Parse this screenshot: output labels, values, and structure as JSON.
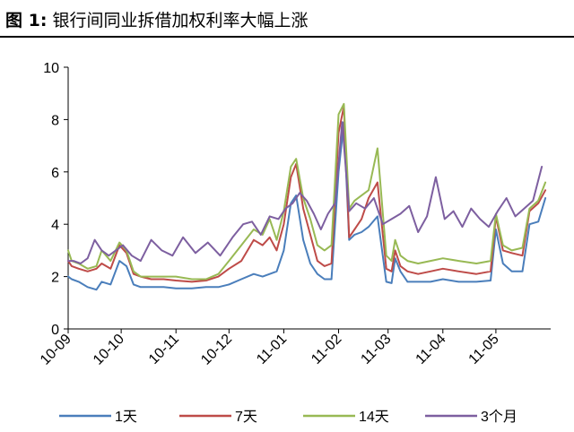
{
  "figure_label": "图 1:",
  "chart_data": {
    "type": "line",
    "title": "银行间同业拆借加权利率大幅上涨",
    "xlabel": "",
    "ylabel": "",
    "ylim": [
      0,
      10
    ],
    "yticks": [
      "0",
      "2",
      "4",
      "6",
      "8",
      "10"
    ],
    "xlim": [
      "2010-09-01",
      "2011-06-01"
    ],
    "xticks": [
      {
        "date": "2010-09-01",
        "label": "10-09"
      },
      {
        "date": "2010-10-01",
        "label": "10-10"
      },
      {
        "date": "2010-11-01",
        "label": "10-11"
      },
      {
        "date": "2010-12-01",
        "label": "10-12"
      },
      {
        "date": "2011-01-01",
        "label": "11-01"
      },
      {
        "date": "2011-02-01",
        "label": "11-02"
      },
      {
        "date": "2011-03-01",
        "label": "11-03"
      },
      {
        "date": "2011-04-01",
        "label": "11-04"
      },
      {
        "date": "2011-05-01",
        "label": "11-05"
      }
    ],
    "grid": false,
    "legend_position": "bottom",
    "series": [
      {
        "name": "1天",
        "color": "#4a7ebb",
        "x": [
          "2010-09-01",
          "2010-09-03",
          "2010-09-07",
          "2010-09-12",
          "2010-09-17",
          "2010-09-20",
          "2010-09-25",
          "2010-09-30",
          "2010-10-04",
          "2010-10-08",
          "2010-10-12",
          "2010-10-18",
          "2010-10-25",
          "2010-11-01",
          "2010-11-10",
          "2010-11-18",
          "2010-11-25",
          "2010-12-01",
          "2010-12-08",
          "2010-12-15",
          "2010-12-20",
          "2010-12-24",
          "2010-12-28",
          "2011-01-01",
          "2011-01-05",
          "2011-01-08",
          "2011-01-12",
          "2011-01-16",
          "2011-01-20",
          "2011-01-24",
          "2011-01-28",
          "2011-02-01",
          "2011-02-04",
          "2011-02-07",
          "2011-02-10",
          "2011-02-14",
          "2011-02-18",
          "2011-02-23",
          "2011-02-28",
          "2011-03-03",
          "2011-03-05",
          "2011-03-08",
          "2011-03-12",
          "2011-03-18",
          "2011-03-25",
          "2011-04-01",
          "2011-04-10",
          "2011-04-20",
          "2011-04-28",
          "2011-05-01",
          "2011-05-05",
          "2011-05-10",
          "2011-05-16",
          "2011-05-20",
          "2011-05-25",
          "2011-05-29"
        ],
        "y": [
          2.0,
          1.9,
          1.8,
          1.6,
          1.5,
          1.8,
          1.7,
          2.6,
          2.4,
          1.7,
          1.6,
          1.6,
          1.6,
          1.55,
          1.55,
          1.6,
          1.6,
          1.7,
          1.9,
          2.1,
          2.0,
          2.1,
          2.2,
          3.0,
          4.8,
          5.1,
          3.4,
          2.5,
          2.1,
          1.9,
          1.9,
          6.0,
          7.9,
          3.4,
          3.6,
          3.7,
          3.9,
          4.3,
          1.8,
          1.75,
          2.7,
          2.2,
          1.8,
          1.8,
          1.8,
          1.9,
          1.8,
          1.8,
          1.85,
          3.8,
          2.5,
          2.2,
          2.2,
          4.0,
          4.1,
          5.0
        ]
      },
      {
        "name": "7天",
        "color": "#be4b48",
        "x": [
          "2010-09-01",
          "2010-09-03",
          "2010-09-07",
          "2010-09-12",
          "2010-09-17",
          "2010-09-20",
          "2010-09-25",
          "2010-09-30",
          "2010-10-04",
          "2010-10-08",
          "2010-10-12",
          "2010-10-18",
          "2010-10-25",
          "2010-11-01",
          "2010-11-10",
          "2010-11-18",
          "2010-11-25",
          "2010-12-01",
          "2010-12-08",
          "2010-12-15",
          "2010-12-20",
          "2010-12-24",
          "2010-12-28",
          "2011-01-01",
          "2011-01-05",
          "2011-01-08",
          "2011-01-12",
          "2011-01-16",
          "2011-01-20",
          "2011-01-24",
          "2011-01-28",
          "2011-02-01",
          "2011-02-04",
          "2011-02-07",
          "2011-02-10",
          "2011-02-14",
          "2011-02-18",
          "2011-02-23",
          "2011-02-28",
          "2011-03-03",
          "2011-03-05",
          "2011-03-08",
          "2011-03-12",
          "2011-03-18",
          "2011-03-25",
          "2011-04-01",
          "2011-04-10",
          "2011-04-20",
          "2011-04-28",
          "2011-05-01",
          "2011-05-05",
          "2011-05-10",
          "2011-05-16",
          "2011-05-20",
          "2011-05-25",
          "2011-05-29"
        ],
        "y": [
          2.6,
          2.4,
          2.3,
          2.2,
          2.3,
          2.5,
          2.3,
          3.2,
          2.9,
          2.1,
          2.0,
          1.9,
          1.9,
          1.85,
          1.8,
          1.85,
          2.0,
          2.3,
          2.6,
          3.4,
          3.2,
          3.5,
          3.0,
          4.0,
          5.8,
          6.3,
          4.6,
          3.6,
          2.6,
          2.4,
          2.5,
          7.5,
          8.5,
          3.5,
          3.8,
          4.2,
          5.0,
          5.6,
          2.3,
          2.2,
          3.0,
          2.4,
          2.2,
          2.1,
          2.2,
          2.3,
          2.2,
          2.1,
          2.2,
          4.3,
          3.0,
          2.9,
          2.8,
          4.5,
          4.8,
          5.3
        ]
      },
      {
        "name": "14天",
        "color": "#98b954",
        "x": [
          "2010-09-01",
          "2010-09-03",
          "2010-09-07",
          "2010-09-12",
          "2010-09-17",
          "2010-09-20",
          "2010-09-25",
          "2010-09-30",
          "2010-10-04",
          "2010-10-08",
          "2010-10-12",
          "2010-10-18",
          "2010-10-25",
          "2010-11-01",
          "2010-11-10",
          "2010-11-18",
          "2010-11-25",
          "2010-12-01",
          "2010-12-08",
          "2010-12-15",
          "2010-12-20",
          "2010-12-24",
          "2010-12-28",
          "2011-01-01",
          "2011-01-05",
          "2011-01-08",
          "2011-01-12",
          "2011-01-16",
          "2011-01-20",
          "2011-01-24",
          "2011-01-28",
          "2011-02-01",
          "2011-02-04",
          "2011-02-07",
          "2011-02-10",
          "2011-02-14",
          "2011-02-18",
          "2011-02-23",
          "2011-02-28",
          "2011-03-03",
          "2011-03-05",
          "2011-03-08",
          "2011-03-12",
          "2011-03-18",
          "2011-03-25",
          "2011-04-01",
          "2011-04-10",
          "2011-04-20",
          "2011-04-28",
          "2011-05-01",
          "2011-05-05",
          "2011-05-10",
          "2011-05-16",
          "2011-05-20",
          "2011-05-25",
          "2011-05-29"
        ],
        "y": [
          3.0,
          2.6,
          2.5,
          2.3,
          2.4,
          3.0,
          2.6,
          3.3,
          3.0,
          2.2,
          2.0,
          2.0,
          2.0,
          2.0,
          1.9,
          1.9,
          2.1,
          2.6,
          3.2,
          3.8,
          3.6,
          4.2,
          3.4,
          4.5,
          6.2,
          6.5,
          5.0,
          4.2,
          3.2,
          3.0,
          3.2,
          8.2,
          8.6,
          4.6,
          4.9,
          5.1,
          5.3,
          6.9,
          2.8,
          2.6,
          3.4,
          2.8,
          2.6,
          2.5,
          2.6,
          2.7,
          2.6,
          2.5,
          2.6,
          4.4,
          3.2,
          3.0,
          3.1,
          4.6,
          4.9,
          5.6
        ]
      },
      {
        "name": "3个月",
        "color": "#7d5fa0",
        "x": [
          "2010-09-01",
          "2010-09-04",
          "2010-09-08",
          "2010-09-12",
          "2010-09-16",
          "2010-09-20",
          "2010-09-24",
          "2010-09-28",
          "2010-10-02",
          "2010-10-07",
          "2010-10-12",
          "2010-10-18",
          "2010-10-24",
          "2010-10-30",
          "2010-11-05",
          "2010-11-12",
          "2010-11-19",
          "2010-11-26",
          "2010-12-03",
          "2010-12-09",
          "2010-12-14",
          "2010-12-19",
          "2010-12-24",
          "2010-12-29",
          "2011-01-02",
          "2011-01-06",
          "2011-01-10",
          "2011-01-14",
          "2011-01-18",
          "2011-01-22",
          "2011-01-26",
          "2011-01-30",
          "2011-02-03",
          "2011-02-07",
          "2011-02-11",
          "2011-02-16",
          "2011-02-21",
          "2011-02-26",
          "2011-03-03",
          "2011-03-08",
          "2011-03-13",
          "2011-03-18",
          "2011-03-23",
          "2011-03-28",
          "2011-04-02",
          "2011-04-07",
          "2011-04-12",
          "2011-04-17",
          "2011-04-22",
          "2011-04-27",
          "2011-05-02",
          "2011-05-07",
          "2011-05-12",
          "2011-05-17",
          "2011-05-22",
          "2011-05-27"
        ],
        "y": [
          2.6,
          2.6,
          2.5,
          2.7,
          3.4,
          3.0,
          2.8,
          3.0,
          3.2,
          2.8,
          2.6,
          3.4,
          3.0,
          2.8,
          3.5,
          2.9,
          3.3,
          2.8,
          3.5,
          4.0,
          4.1,
          3.6,
          4.3,
          4.2,
          4.6,
          4.8,
          5.2,
          4.9,
          4.4,
          3.8,
          4.4,
          4.8,
          7.9,
          4.5,
          4.8,
          4.6,
          5.0,
          4.0,
          4.2,
          4.4,
          4.7,
          3.7,
          4.3,
          5.8,
          4.2,
          4.5,
          3.9,
          4.6,
          4.2,
          3.9,
          4.5,
          5.0,
          4.3,
          4.6,
          4.9,
          6.2
        ]
      }
    ]
  }
}
